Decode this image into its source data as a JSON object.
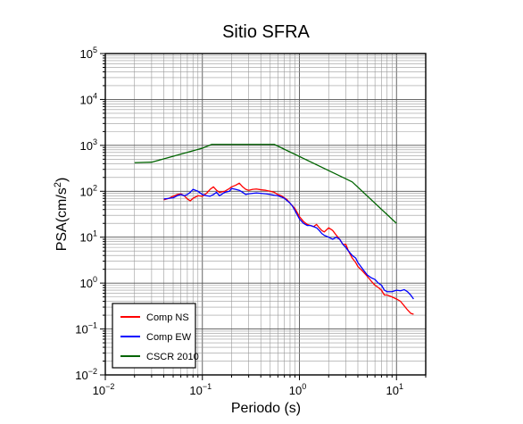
{
  "chart_data": {
    "type": "line",
    "title": "Sitio SFRA",
    "xlabel": "Periodo (s)",
    "ylabel": {
      "base": "PSA(cm/s",
      "sup": "2",
      "close": ")"
    },
    "xscale": "log",
    "yscale": "log",
    "xlim": [
      0.01,
      20
    ],
    "ylim": [
      0.01,
      100000
    ],
    "grid": true,
    "legend_position": "bottom-left",
    "x_ticks": [
      {
        "base": "10",
        "exp": "−2",
        "value": 0.01
      },
      {
        "base": "10",
        "exp": "−1",
        "value": 0.1
      },
      {
        "base": "10",
        "exp": "0",
        "value": 1
      },
      {
        "base": "10",
        "exp": "1",
        "value": 10
      }
    ],
    "y_ticks": [
      {
        "base": "10",
        "exp": "−2",
        "value": 0.01
      },
      {
        "base": "10",
        "exp": "−1",
        "value": 0.1
      },
      {
        "base": "10",
        "exp": "0",
        "value": 1
      },
      {
        "base": "10",
        "exp": "1",
        "value": 10
      },
      {
        "base": "10",
        "exp": "2",
        "value": 100
      },
      {
        "base": "10",
        "exp": "3",
        "value": 1000
      },
      {
        "base": "10",
        "exp": "4",
        "value": 10000
      },
      {
        "base": "10",
        "exp": "5",
        "value": 100000
      }
    ],
    "series": [
      {
        "name": "Comp NS",
        "color": "#ff0000",
        "points": [
          [
            0.04,
            65
          ],
          [
            0.045,
            70
          ],
          [
            0.05,
            78
          ],
          [
            0.055,
            85
          ],
          [
            0.06,
            88
          ],
          [
            0.065,
            80
          ],
          [
            0.07,
            68
          ],
          [
            0.075,
            62
          ],
          [
            0.08,
            70
          ],
          [
            0.09,
            80
          ],
          [
            0.1,
            78
          ],
          [
            0.11,
            90
          ],
          [
            0.12,
            110
          ],
          [
            0.13,
            125
          ],
          [
            0.14,
            105
          ],
          [
            0.15,
            95
          ],
          [
            0.17,
            100
          ],
          [
            0.19,
            115
          ],
          [
            0.2,
            125
          ],
          [
            0.22,
            135
          ],
          [
            0.24,
            150
          ],
          [
            0.26,
            125
          ],
          [
            0.28,
            110
          ],
          [
            0.3,
            105
          ],
          [
            0.33,
            110
          ],
          [
            0.36,
            112
          ],
          [
            0.4,
            108
          ],
          [
            0.45,
            105
          ],
          [
            0.5,
            100
          ],
          [
            0.55,
            95
          ],
          [
            0.6,
            85
          ],
          [
            0.65,
            80
          ],
          [
            0.7,
            72
          ],
          [
            0.75,
            65
          ],
          [
            0.8,
            55
          ],
          [
            0.85,
            48
          ],
          [
            0.9,
            42
          ],
          [
            1.0,
            28
          ],
          [
            1.1,
            22
          ],
          [
            1.2,
            19
          ],
          [
            1.3,
            18
          ],
          [
            1.4,
            17
          ],
          [
            1.5,
            19
          ],
          [
            1.6,
            16
          ],
          [
            1.7,
            14
          ],
          [
            1.8,
            13
          ],
          [
            2.0,
            16
          ],
          [
            2.2,
            14
          ],
          [
            2.4,
            11
          ],
          [
            2.6,
            9
          ],
          [
            2.8,
            7
          ],
          [
            3.0,
            7
          ],
          [
            3.2,
            5
          ],
          [
            3.5,
            3.5
          ],
          [
            3.8,
            2.8
          ],
          [
            4.0,
            2.3
          ],
          [
            4.5,
            1.8
          ],
          [
            5.0,
            1.4
          ],
          [
            5.5,
            1.1
          ],
          [
            6.0,
            0.9
          ],
          [
            6.5,
            0.8
          ],
          [
            7.0,
            0.7
          ],
          [
            7.5,
            0.55
          ],
          [
            8.0,
            0.55
          ],
          [
            9.0,
            0.5
          ],
          [
            10.0,
            0.45
          ],
          [
            11.0,
            0.4
          ],
          [
            12.0,
            0.32
          ],
          [
            13.0,
            0.26
          ],
          [
            14.0,
            0.22
          ],
          [
            15.0,
            0.21
          ]
        ]
      },
      {
        "name": "Comp EW",
        "color": "#0000ff",
        "points": [
          [
            0.04,
            68
          ],
          [
            0.045,
            70
          ],
          [
            0.05,
            72
          ],
          [
            0.055,
            80
          ],
          [
            0.06,
            85
          ],
          [
            0.065,
            80
          ],
          [
            0.07,
            85
          ],
          [
            0.075,
            95
          ],
          [
            0.08,
            110
          ],
          [
            0.09,
            100
          ],
          [
            0.1,
            85
          ],
          [
            0.11,
            80
          ],
          [
            0.12,
            78
          ],
          [
            0.13,
            85
          ],
          [
            0.14,
            95
          ],
          [
            0.15,
            80
          ],
          [
            0.17,
            95
          ],
          [
            0.19,
            100
          ],
          [
            0.2,
            115
          ],
          [
            0.22,
            110
          ],
          [
            0.24,
            105
          ],
          [
            0.26,
            95
          ],
          [
            0.28,
            85
          ],
          [
            0.3,
            88
          ],
          [
            0.33,
            90
          ],
          [
            0.36,
            92
          ],
          [
            0.4,
            90
          ],
          [
            0.45,
            88
          ],
          [
            0.5,
            85
          ],
          [
            0.55,
            82
          ],
          [
            0.6,
            80
          ],
          [
            0.65,
            75
          ],
          [
            0.7,
            70
          ],
          [
            0.75,
            62
          ],
          [
            0.8,
            55
          ],
          [
            0.85,
            47
          ],
          [
            0.9,
            38
          ],
          [
            1.0,
            25
          ],
          [
            1.1,
            20
          ],
          [
            1.2,
            18
          ],
          [
            1.3,
            18
          ],
          [
            1.4,
            17
          ],
          [
            1.5,
            16
          ],
          [
            1.6,
            14
          ],
          [
            1.7,
            12
          ],
          [
            1.8,
            11
          ],
          [
            2.0,
            10
          ],
          [
            2.2,
            9
          ],
          [
            2.4,
            10
          ],
          [
            2.6,
            9
          ],
          [
            2.8,
            7
          ],
          [
            3.0,
            6
          ],
          [
            3.2,
            5
          ],
          [
            3.5,
            4
          ],
          [
            3.8,
            3.5
          ],
          [
            4.0,
            2.8
          ],
          [
            4.5,
            2.0
          ],
          [
            5.0,
            1.5
          ],
          [
            5.5,
            1.3
          ],
          [
            6.0,
            1.2
          ],
          [
            6.5,
            1.0
          ],
          [
            7.0,
            0.9
          ],
          [
            7.5,
            0.7
          ],
          [
            8.0,
            0.65
          ],
          [
            9.0,
            0.65
          ],
          [
            10.0,
            0.7
          ],
          [
            11.0,
            0.68
          ],
          [
            12.0,
            0.72
          ],
          [
            13.0,
            0.65
          ],
          [
            14.0,
            0.55
          ],
          [
            15.0,
            0.45
          ]
        ]
      },
      {
        "name": "CSCR 2010",
        "color": "#006400",
        "points": [
          [
            0.02,
            420
          ],
          [
            0.03,
            430
          ],
          [
            0.1,
            870
          ],
          [
            0.125,
            1050
          ],
          [
            0.55,
            1050
          ],
          [
            3.5,
            160
          ],
          [
            10.0,
            20
          ]
        ]
      }
    ]
  }
}
